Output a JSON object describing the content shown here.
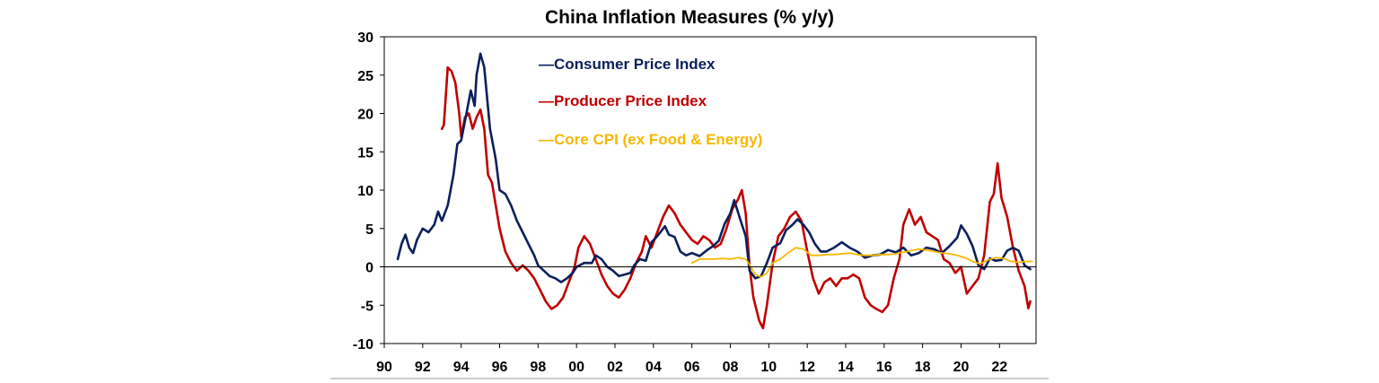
{
  "colors": {
    "cpi": "#0b1f5c",
    "ppi": "#c00000",
    "core": "#f5b800",
    "axis": "#000000",
    "background": "#ffffff"
  },
  "chart_data": {
    "type": "line",
    "title": "China Inflation Measures (% y/y)",
    "xlabel": "",
    "ylabel": "",
    "xlim": [
      1990,
      2023.9
    ],
    "ylim": [
      -10,
      30
    ],
    "y_ticks": [
      30,
      25,
      20,
      15,
      10,
      5,
      0,
      -5,
      -10
    ],
    "y_tick_labels": [
      "30",
      "25",
      "20",
      "15",
      "10",
      "5",
      "0",
      "-5",
      "-10"
    ],
    "x_ticks": [
      1990,
      1992,
      1994,
      1996,
      1998,
      2000,
      2002,
      2004,
      2006,
      2008,
      2010,
      2012,
      2014,
      2016,
      2018,
      2020,
      2022
    ],
    "x_tick_labels": [
      "90",
      "92",
      "94",
      "96",
      "98",
      "00",
      "02",
      "04",
      "06",
      "08",
      "10",
      "12",
      "14",
      "16",
      "18",
      "20",
      "22"
    ],
    "legend_position": "top-center",
    "grid": false,
    "series": [
      {
        "name": "Consumer Price Index",
        "color_key": "cpi",
        "legend_label": "—Consumer Price Index",
        "x": [
          1990.7,
          1990.9,
          1991.1,
          1991.3,
          1991.5,
          1991.7,
          1992.0,
          1992.3,
          1992.6,
          1992.8,
          1993.0,
          1993.3,
          1993.6,
          1993.8,
          1994.0,
          1994.2,
          1994.5,
          1994.7,
          1994.8,
          1995.0,
          1995.2,
          1995.5,
          1995.8,
          1996.0,
          1996.3,
          1996.6,
          1996.9,
          1997.2,
          1997.5,
          1997.8,
          1998.0,
          1998.3,
          1998.6,
          1998.9,
          1999.2,
          1999.5,
          1999.8,
          2000.0,
          2000.4,
          2000.8,
          2001.0,
          2001.3,
          2001.6,
          2001.9,
          2002.2,
          2002.5,
          2002.8,
          2003.0,
          2003.3,
          2003.6,
          2003.9,
          2004.2,
          2004.6,
          2004.8,
          2005.1,
          2005.4,
          2005.7,
          2006.0,
          2006.4,
          2006.8,
          2007.1,
          2007.4,
          2007.7,
          2008.0,
          2008.2,
          2008.5,
          2008.8,
          2009.0,
          2009.3,
          2009.6,
          2009.9,
          2010.2,
          2010.6,
          2010.9,
          2011.2,
          2011.5,
          2011.8,
          2012.1,
          2012.4,
          2012.7,
          2013.0,
          2013.4,
          2013.8,
          2014.2,
          2014.6,
          2015.0,
          2015.4,
          2015.8,
          2016.2,
          2016.6,
          2017.0,
          2017.4,
          2017.8,
          2018.2,
          2018.6,
          2019.0,
          2019.4,
          2019.8,
          2020.0,
          2020.3,
          2020.6,
          2020.9,
          2021.2,
          2021.5,
          2021.8,
          2022.1,
          2022.4,
          2022.7,
          2023.0,
          2023.3,
          2023.6
        ],
        "y": [
          1.0,
          3.0,
          4.2,
          2.5,
          1.8,
          3.5,
          5.0,
          4.5,
          5.5,
          7.2,
          6.0,
          8.0,
          12.0,
          16.0,
          16.5,
          19.0,
          23.0,
          21.0,
          25.0,
          27.8,
          26.0,
          18.0,
          14.0,
          10.0,
          9.5,
          8.0,
          6.0,
          4.5,
          3.0,
          1.5,
          0.2,
          -0.5,
          -1.2,
          -1.5,
          -2.0,
          -1.5,
          -0.8,
          0.0,
          0.5,
          0.5,
          1.5,
          1.0,
          0.0,
          -0.5,
          -1.2,
          -1.0,
          -0.8,
          0.2,
          1.0,
          0.8,
          3.2,
          4.0,
          5.3,
          4.2,
          3.9,
          2.0,
          1.5,
          1.8,
          1.4,
          2.2,
          2.7,
          3.4,
          5.6,
          7.0,
          8.7,
          6.3,
          4.0,
          -0.5,
          -1.5,
          -1.2,
          0.5,
          2.5,
          3.1,
          4.8,
          5.4,
          6.2,
          5.5,
          4.5,
          3.0,
          2.0,
          2.0,
          2.5,
          3.2,
          2.5,
          2.0,
          1.2,
          1.5,
          1.6,
          2.2,
          1.9,
          2.5,
          1.5,
          1.8,
          2.5,
          2.3,
          1.8,
          2.7,
          3.8,
          5.4,
          4.3,
          2.7,
          0.2,
          -0.3,
          1.1,
          0.8,
          0.9,
          2.1,
          2.5,
          2.1,
          0.2,
          -0.3
        ]
      },
      {
        "name": "Producer Price Index",
        "color_key": "ppi",
        "legend_label": "—Producer Price Index",
        "x": [
          1993.0,
          1993.1,
          1993.3,
          1993.5,
          1993.7,
          1993.9,
          1994.0,
          1994.2,
          1994.4,
          1994.6,
          1994.8,
          1995.0,
          1995.2,
          1995.4,
          1995.6,
          1995.8,
          1996.0,
          1996.3,
          1996.6,
          1996.9,
          1997.2,
          1997.5,
          1997.8,
          1998.1,
          1998.4,
          1998.7,
          1999.0,
          1999.3,
          1999.6,
          1999.9,
          2000.1,
          2000.4,
          2000.7,
          2001.0,
          2001.3,
          2001.6,
          2001.9,
          2002.2,
          2002.5,
          2002.8,
          2003.1,
          2003.4,
          2003.6,
          2003.9,
          2004.2,
          2004.5,
          2004.8,
          2005.1,
          2005.4,
          2005.7,
          2006.0,
          2006.3,
          2006.6,
          2006.9,
          2007.2,
          2007.5,
          2007.8,
          2008.1,
          2008.4,
          2008.6,
          2008.8,
          2009.0,
          2009.2,
          2009.5,
          2009.7,
          2009.9,
          2010.2,
          2010.5,
          2010.8,
          2011.1,
          2011.4,
          2011.7,
          2012.0,
          2012.3,
          2012.6,
          2012.9,
          2013.2,
          2013.5,
          2013.8,
          2014.1,
          2014.4,
          2014.7,
          2015.0,
          2015.3,
          2015.6,
          2015.9,
          2016.2,
          2016.5,
          2016.8,
          2017.0,
          2017.3,
          2017.6,
          2017.9,
          2018.2,
          2018.5,
          2018.8,
          2019.1,
          2019.4,
          2019.7,
          2020.0,
          2020.3,
          2020.6,
          2020.9,
          2021.2,
          2021.5,
          2021.7,
          2021.9,
          2022.1,
          2022.4,
          2022.7,
          2023.0,
          2023.3,
          2023.5,
          2023.6
        ],
        "y": [
          18.0,
          18.5,
          26.0,
          25.5,
          24.0,
          20.0,
          17.0,
          19.5,
          20.0,
          18.0,
          19.5,
          20.5,
          18.0,
          12.0,
          11.0,
          8.0,
          5.0,
          2.0,
          0.5,
          -0.5,
          0.2,
          -0.5,
          -1.5,
          -3.0,
          -4.5,
          -5.5,
          -5.0,
          -4.0,
          -2.0,
          0.0,
          2.5,
          4.0,
          3.0,
          1.0,
          -1.0,
          -2.5,
          -3.5,
          -4.0,
          -3.0,
          -1.5,
          0.5,
          2.0,
          4.0,
          2.5,
          4.5,
          6.5,
          8.0,
          7.0,
          5.5,
          4.5,
          3.5,
          3.0,
          4.0,
          3.5,
          2.5,
          3.0,
          5.0,
          7.5,
          8.8,
          10.0,
          7.0,
          0.0,
          -4.0,
          -7.0,
          -8.0,
          -5.0,
          0.5,
          4.0,
          5.0,
          6.5,
          7.2,
          6.0,
          2.0,
          -1.5,
          -3.5,
          -2.0,
          -1.5,
          -2.5,
          -1.5,
          -1.5,
          -1.0,
          -1.5,
          -4.0,
          -5.0,
          -5.5,
          -5.9,
          -5.0,
          -1.5,
          1.0,
          5.5,
          7.5,
          5.5,
          6.5,
          4.5,
          4.0,
          3.5,
          1.0,
          0.5,
          -0.8,
          0.0,
          -3.5,
          -2.5,
          -1.5,
          1.5,
          8.5,
          9.5,
          13.5,
          9.0,
          6.5,
          2.5,
          -0.5,
          -2.5,
          -5.4,
          -4.5
        ]
      },
      {
        "name": "Core CPI (ex Food & Energy)",
        "color_key": "core",
        "legend_label": "—Core CPI (ex Food & Energy)",
        "x": [
          2006.0,
          2006.4,
          2006.8,
          2007.2,
          2007.6,
          2008.0,
          2008.4,
          2008.8,
          2009.0,
          2009.3,
          2009.6,
          2009.9,
          2010.2,
          2010.6,
          2011.0,
          2011.4,
          2011.8,
          2012.2,
          2012.6,
          2013.0,
          2013.4,
          2013.8,
          2014.2,
          2014.6,
          2015.0,
          2015.4,
          2015.8,
          2016.2,
          2016.6,
          2017.0,
          2017.4,
          2017.8,
          2018.2,
          2018.6,
          2019.0,
          2019.4,
          2019.8,
          2020.2,
          2020.6,
          2021.0,
          2021.4,
          2021.8,
          2022.2,
          2022.6,
          2023.0,
          2023.4,
          2023.7
        ],
        "y": [
          0.5,
          1.0,
          1.0,
          1.0,
          1.1,
          1.0,
          1.2,
          1.0,
          0.3,
          -1.0,
          -1.3,
          -0.8,
          0.5,
          1.0,
          1.8,
          2.5,
          2.3,
          1.5,
          1.5,
          1.6,
          1.6,
          1.7,
          1.8,
          1.6,
          1.5,
          1.5,
          1.6,
          1.6,
          1.7,
          1.9,
          2.1,
          2.3,
          2.2,
          2.0,
          1.8,
          1.7,
          1.5,
          1.2,
          0.7,
          0.4,
          0.9,
          1.2,
          1.1,
          0.7,
          0.6,
          0.7,
          0.7
        ]
      }
    ]
  }
}
